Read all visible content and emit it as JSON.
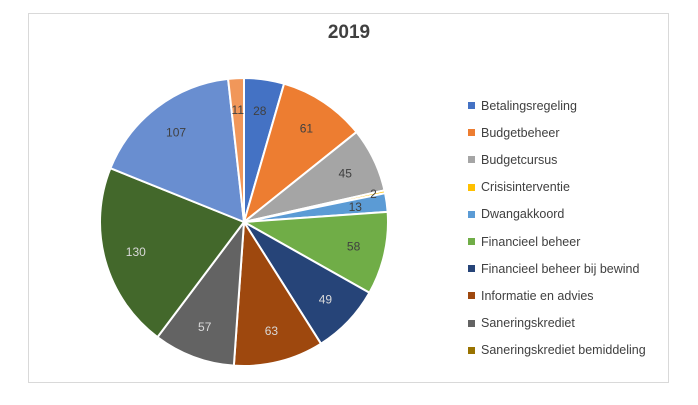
{
  "chart_data": {
    "type": "pie",
    "title": "2019",
    "categories": [
      "Betalingsregeling",
      "Budgetbeheer",
      "Budgetcursus",
      "Crisisinterventie",
      "Dwangakkoord",
      "Financieel beheer",
      "Financieel beheer bij bewind",
      "Informatie en advies",
      "Saneringskrediet",
      "Saneringskrediet bemiddeling"
    ],
    "slices": [
      {
        "label": "Betalingsregeling",
        "value": 28,
        "color": "#4472c4"
      },
      {
        "label": "Budgetbeheer",
        "value": 61,
        "color": "#ed7d31"
      },
      {
        "label": "Budgetcursus",
        "value": 45,
        "color": "#a5a5a5"
      },
      {
        "label": "Crisisinterventie",
        "value": 2,
        "color": "#ffc000"
      },
      {
        "label": "Dwangakkoord",
        "value": 13,
        "color": "#5b9bd5"
      },
      {
        "label": "Financieel beheer",
        "value": 58,
        "color": "#70ad47"
      },
      {
        "label": "Financieel beheer bij bewind",
        "value": 49,
        "color": "#264478"
      },
      {
        "label": "Informatie en advies",
        "value": 63,
        "color": "#9e480e"
      },
      {
        "label": "Saneringskrediet",
        "value": 57,
        "color": "#636363"
      },
      {
        "label": "Saneringskrediet bemiddeling",
        "value": 0,
        "color": "#997300"
      },
      {
        "label": "",
        "value": 130,
        "color": "#43682b"
      },
      {
        "label": "",
        "value": 107,
        "color": "#698ed0"
      },
      {
        "label": "",
        "value": 11,
        "color": "#f1975a"
      }
    ],
    "legend_position": "right"
  }
}
